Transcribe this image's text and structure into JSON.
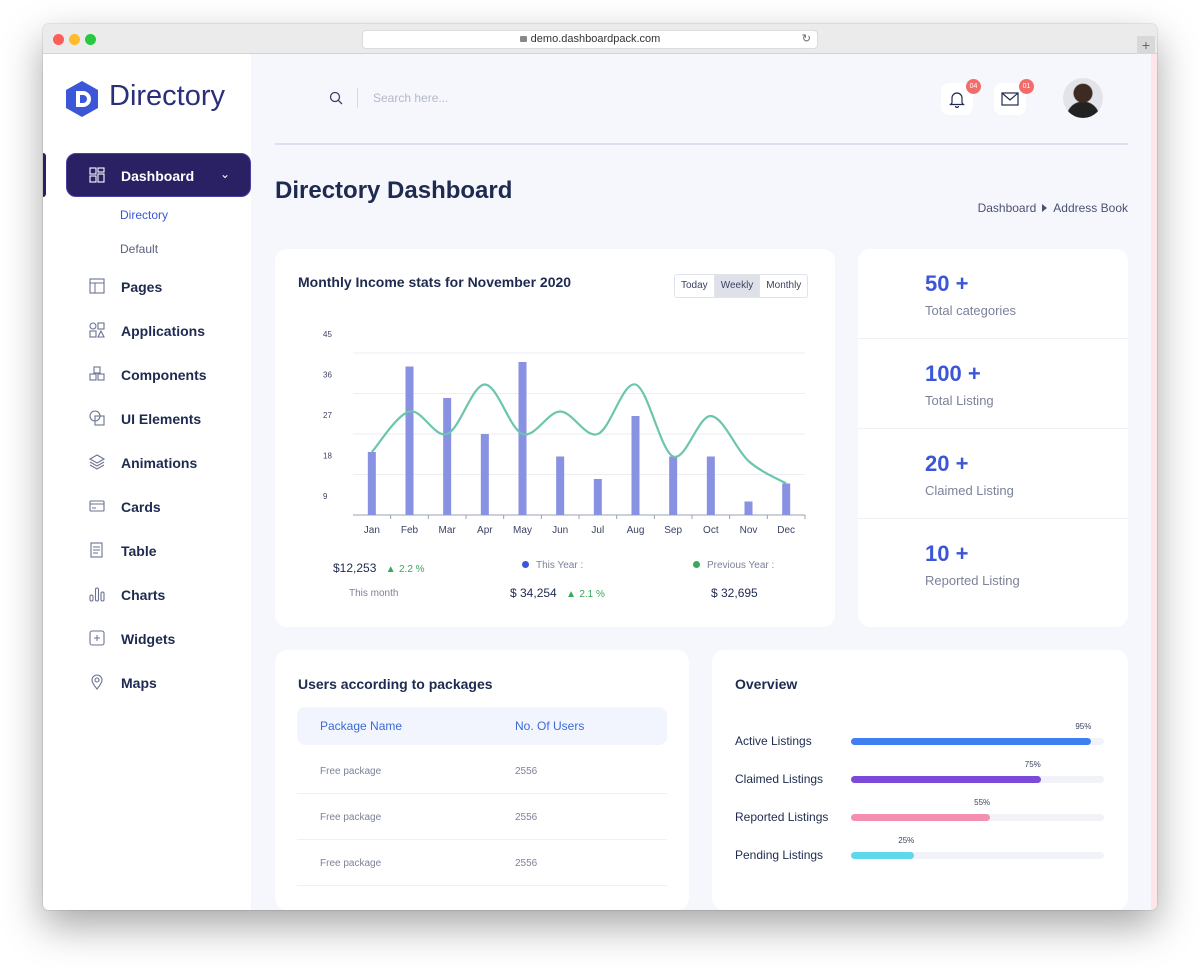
{
  "browser": {
    "url": "demo.dashboardpack.com"
  },
  "sidebar": {
    "brand": "Directory",
    "brand_color": "#3b56d6",
    "active": {
      "label": "Dashboard",
      "icon": "grid-icon"
    },
    "subitems": [
      {
        "label": "Directory",
        "active": true
      },
      {
        "label": "Default",
        "active": false
      }
    ],
    "items": [
      {
        "label": "Pages",
        "icon": "pages-icon"
      },
      {
        "label": "Applications",
        "icon": "shapes-icon"
      },
      {
        "label": "Components",
        "icon": "cubes-icon"
      },
      {
        "label": "UI Elements",
        "icon": "ui-elements-icon"
      },
      {
        "label": "Animations",
        "icon": "layers-icon"
      },
      {
        "label": "Cards",
        "icon": "card-icon"
      },
      {
        "label": "Table",
        "icon": "table-icon"
      },
      {
        "label": "Charts",
        "icon": "bar-chart-icon"
      },
      {
        "label": "Widgets",
        "icon": "widget-plus-icon"
      },
      {
        "label": "Maps",
        "icon": "map-pin-icon"
      }
    ]
  },
  "header": {
    "search_placeholder": "Search here...",
    "notifications_count": "04",
    "messages_count": "01"
  },
  "page": {
    "title": "Directory Dashboard",
    "breadcrumb": [
      "Dashboard",
      "Address Book"
    ]
  },
  "income": {
    "title": "Monthly Income stats for November 2020",
    "tabs": [
      "Today",
      "Weekly",
      "Monthly"
    ],
    "selected_tab": "Weekly",
    "this_month_value": "$12,253",
    "this_month_change": "2.2 %",
    "this_month_label": "This month",
    "this_year_label": "This Year :",
    "this_year_value": "$ 34,254",
    "this_year_change": "2.1 %",
    "prev_year_label": "Previous Year :",
    "prev_year_value": "$ 32,695"
  },
  "chart_data": {
    "type": "bar",
    "categories": [
      "Jan",
      "Feb",
      "Mar",
      "Apr",
      "May",
      "Jun",
      "Jul",
      "Aug",
      "Sep",
      "Oct",
      "Nov",
      "Dec"
    ],
    "y_ticks": [
      "45",
      "36",
      "27",
      "18",
      "9"
    ],
    "ylim": [
      9,
      45
    ],
    "series": [
      {
        "values": [
          23,
          42,
          35,
          27,
          43,
          22,
          17,
          31,
          22,
          22,
          12,
          16
        ],
        "color": "#8891e2",
        "kind": "bar"
      },
      {
        "values": [
          23,
          32,
          27,
          38,
          27,
          32,
          27,
          38,
          22,
          31,
          21,
          16
        ],
        "color": "#6cc5ad",
        "kind": "smooth-line"
      }
    ],
    "legend_colors": [
      "#3b56d6",
      "#3aa85b"
    ],
    "grid": true
  },
  "stats": [
    {
      "value": "50 +",
      "label": "Total categories"
    },
    {
      "value": "100 +",
      "label": "Total Listing"
    },
    {
      "value": "20 +",
      "label": "Claimed Listing"
    },
    {
      "value": "10 +",
      "label": "Reported Listing"
    }
  ],
  "packages": {
    "title": "Users according to packages",
    "columns": [
      "Package Name",
      "No. Of Users"
    ],
    "rows": [
      [
        "Free package",
        "2556"
      ],
      [
        "Free package",
        "2556"
      ],
      [
        "Free package",
        "2556"
      ]
    ]
  },
  "overview": {
    "title": "Overview",
    "items": [
      {
        "label": "Active Listings",
        "percent": 95,
        "percent_label": "95%",
        "color": "#3f7ff0"
      },
      {
        "label": "Claimed Listings",
        "percent": 75,
        "percent_label": "75%",
        "color": "#7b4ad8"
      },
      {
        "label": "Reported Listings",
        "percent": 55,
        "percent_label": "55%",
        "color": "#f48fb1"
      },
      {
        "label": "Pending Listings",
        "percent": 25,
        "percent_label": "25%",
        "color": "#5fd8ec"
      }
    ]
  }
}
